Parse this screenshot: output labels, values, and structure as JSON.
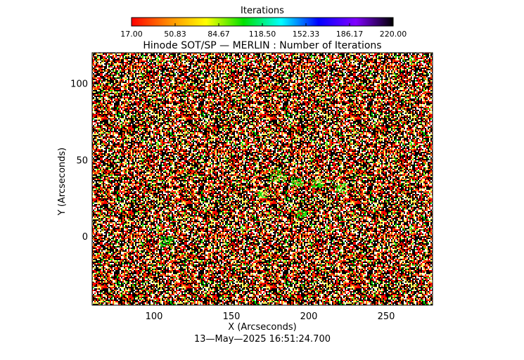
{
  "chart_data": {
    "type": "heatmap",
    "title": "Hinode SOT/SP — MERLIN : Number of Iterations",
    "xlabel": "X (Arcseconds)",
    "ylabel": "Y (Arcseconds)",
    "xlim": [
      60,
      280
    ],
    "ylim": [
      -45,
      120
    ],
    "x_ticks": [
      "100",
      "150",
      "200",
      "250"
    ],
    "y_ticks": [
      "100",
      "50",
      "0"
    ],
    "x_tick_values": [
      100,
      150,
      200,
      250
    ],
    "y_tick_values": [
      100,
      50,
      0
    ],
    "colorbar": {
      "title": "Iterations",
      "min": 17.0,
      "max": 220.0,
      "tick_labels": [
        "17.00",
        "50.83",
        "84.67",
        "118.50",
        "152.33",
        "186.17",
        "220.00"
      ],
      "colormap": [
        "#ff0000",
        "#ff8c00",
        "#ffff00",
        "#00e000",
        "#00ffff",
        "#0000ff",
        "#8000ff",
        "#000000"
      ]
    },
    "background_color": "#000000",
    "dominant_values": [
      {
        "iterations": 220.0,
        "color": "#000000"
      },
      {
        "iterations": 17.0,
        "color": "#ff0000"
      },
      {
        "iterations": 30.0,
        "color": "#ff6a00"
      },
      {
        "iterations": 70.0,
        "color": "#ffff60"
      },
      {
        "iterations": 90.0,
        "color": "#00e000"
      },
      {
        "iterations": 220.0,
        "color": "#ffffff"
      }
    ],
    "timestamp": "13—May—2025 16:51:24.700"
  }
}
